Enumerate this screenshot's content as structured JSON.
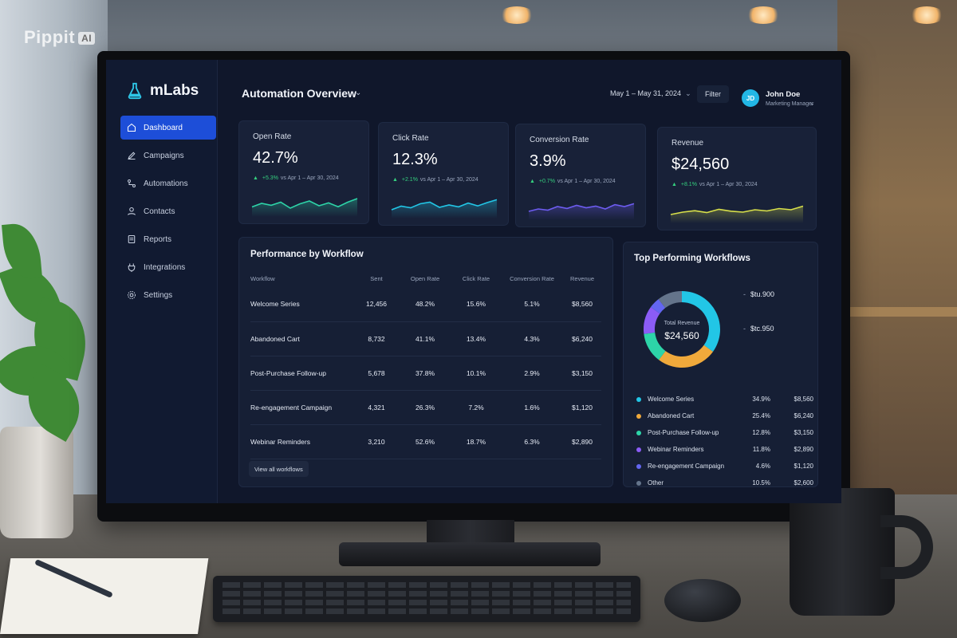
{
  "watermark": {
    "brand": "Pippit",
    "badge": "AI"
  },
  "app": {
    "name": "mLabs"
  },
  "sidebar": {
    "items": [
      {
        "label": "Dashboard",
        "icon": "home-icon",
        "active": true
      },
      {
        "label": "Campaigns",
        "icon": "edit-icon",
        "active": false
      },
      {
        "label": "Automations",
        "icon": "workflow-icon",
        "active": false
      },
      {
        "label": "Contacts",
        "icon": "contacts-icon",
        "active": false
      },
      {
        "label": "Reports",
        "icon": "reports-icon",
        "active": false
      },
      {
        "label": "Integrations",
        "icon": "plug-icon",
        "active": false
      },
      {
        "label": "Settings",
        "icon": "gear-icon",
        "active": false
      }
    ]
  },
  "header": {
    "title": "Automation Overview",
    "date_range": "May 1 – May 31, 2024",
    "filter_label": "Filter",
    "user": {
      "initials": "JD",
      "name": "John Doe",
      "role": "Marketing Manager"
    }
  },
  "kpis": [
    {
      "label": "Open Rate",
      "value": "42.7%",
      "delta": "+5.3%",
      "compare": "vs Apr 1 – Apr 30, 2024",
      "color": "#2dd4a8",
      "trend": [
        0.35,
        0.5,
        0.42,
        0.55,
        0.3,
        0.48,
        0.6,
        0.4,
        0.52,
        0.36,
        0.55,
        0.7
      ]
    },
    {
      "label": "Click Rate",
      "value": "12.3%",
      "delta": "+2.1%",
      "compare": "vs Apr 1 – Apr 30, 2024",
      "color": "#22c6e6",
      "trend": [
        0.3,
        0.45,
        0.38,
        0.55,
        0.62,
        0.4,
        0.5,
        0.42,
        0.58,
        0.46,
        0.6,
        0.72
      ]
    },
    {
      "label": "Conversion Rate",
      "value": "3.9%",
      "delta": "+0.7%",
      "compare": "vs Apr 1 – Apr 30, 2024",
      "color": "#6d5cf0",
      "trend": [
        0.3,
        0.4,
        0.35,
        0.5,
        0.42,
        0.55,
        0.45,
        0.52,
        0.4,
        0.58,
        0.5,
        0.62
      ]
    },
    {
      "label": "Revenue",
      "value": "$24,560",
      "delta": "+8.1%",
      "compare": "vs Apr 1 – Apr 30, 2024",
      "color": "#d8e04a",
      "trend": [
        0.3,
        0.4,
        0.46,
        0.38,
        0.52,
        0.44,
        0.4,
        0.5,
        0.45,
        0.55,
        0.5,
        0.65
      ]
    }
  ],
  "performance": {
    "title": "Performance by Workflow",
    "columns": [
      "Workflow",
      "Sent",
      "Open Rate",
      "Click Rate",
      "Conversion Rate",
      "Revenue"
    ],
    "rows": [
      [
        "Welcome Series",
        "12,456",
        "48.2%",
        "15.6%",
        "5.1%",
        "$8,560"
      ],
      [
        "Abandoned Cart",
        "8,732",
        "41.1%",
        "13.4%",
        "4.3%",
        "$6,240"
      ],
      [
        "Post-Purchase Follow-up",
        "5,678",
        "37.8%",
        "10.1%",
        "2.9%",
        "$3,150"
      ],
      [
        "Re-engagement Campaign",
        "4,321",
        "26.3%",
        "7.2%",
        "1.6%",
        "$1,120"
      ],
      [
        "Webinar Reminders",
        "3,210",
        "52.6%",
        "18.7%",
        "6.3%",
        "$2,890"
      ]
    ],
    "view_all_label": "View all workflows"
  },
  "top_workflows": {
    "title": "Top Performing Workflows",
    "center_label": "Total Revenue",
    "center_value": "$24,560",
    "callouts": [
      "$tu.900",
      "$tc.950"
    ],
    "items": [
      {
        "name": "Welcome Series",
        "pct": "34.9%",
        "amount": "$8,560",
        "share": 34.9,
        "color": "#22c6e6"
      },
      {
        "name": "Abandoned Cart",
        "pct": "25.4%",
        "amount": "$6,240",
        "share": 25.4,
        "color": "#f0a93b"
      },
      {
        "name": "Post-Purchase Follow-up",
        "pct": "12.8%",
        "amount": "$3,150",
        "share": 12.8,
        "color": "#2dd4a8"
      },
      {
        "name": "Webinar Reminders",
        "pct": "11.8%",
        "amount": "$2,890",
        "share": 11.8,
        "color": "#8b5cf6"
      },
      {
        "name": "Re-engagement Campaign",
        "pct": "4.6%",
        "amount": "$1,120",
        "share": 4.6,
        "color": "#6366f1"
      },
      {
        "name": "Other",
        "pct": "10.5%",
        "amount": "$2,600",
        "share": 10.5,
        "color": "#64748b"
      }
    ]
  }
}
